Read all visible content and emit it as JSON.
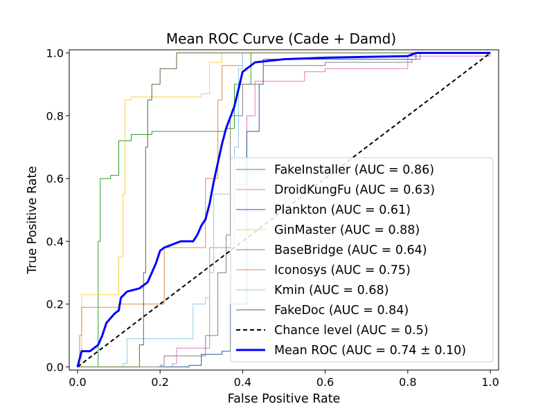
{
  "chart_data": {
    "type": "line",
    "title": "Mean ROC Curve (Cade + Damd)",
    "xlabel": "False Positive Rate",
    "ylabel": "True Positive Rate",
    "xlim": [
      -0.02,
      1.02
    ],
    "ylim": [
      -0.01,
      1.01
    ],
    "xticks": [
      "0.0",
      "0.2",
      "0.4",
      "0.6",
      "0.8",
      "1.0"
    ],
    "yticks": [
      "0.0",
      "0.2",
      "0.4",
      "0.6",
      "0.8",
      "1.0"
    ],
    "legend_position": "lower-right",
    "series": [
      {
        "name": "FakeInstaller",
        "label": "FakeInstaller (AUC = 0.86)",
        "color": "#2ca02c",
        "style": "step",
        "width": 1,
        "points": [
          [
            0,
            0
          ],
          [
            0.04,
            0
          ],
          [
            0.05,
            0.4
          ],
          [
            0.055,
            0.6
          ],
          [
            0.08,
            0.61
          ],
          [
            0.1,
            0.72
          ],
          [
            0.12,
            0.72
          ],
          [
            0.13,
            0.74
          ],
          [
            0.18,
            0.75
          ],
          [
            0.36,
            0.76
          ],
          [
            0.38,
            0.9
          ],
          [
            0.42,
            1.0
          ],
          [
            1.0,
            1.0
          ]
        ]
      },
      {
        "name": "DroidKungFu",
        "label": "DroidKungFu (AUC = 0.63)",
        "color": "#e377c2",
        "style": "step",
        "width": 1,
        "points": [
          [
            0,
            0
          ],
          [
            0.23,
            0.01
          ],
          [
            0.24,
            0.06
          ],
          [
            0.3,
            0.06
          ],
          [
            0.32,
            0.38
          ],
          [
            0.37,
            0.38
          ],
          [
            0.38,
            0.58
          ],
          [
            0.41,
            0.8
          ],
          [
            0.43,
            0.91
          ],
          [
            0.54,
            0.91
          ],
          [
            0.55,
            0.94
          ],
          [
            0.6,
            0.95
          ],
          [
            0.8,
            0.99
          ],
          [
            1.0,
            1.0
          ]
        ]
      },
      {
        "name": "Plankton",
        "label": "Plankton (AUC = 0.61)",
        "color": "#1f5a9a",
        "style": "step",
        "width": 1,
        "points": [
          [
            0,
            0
          ],
          [
            0.27,
            0.005
          ],
          [
            0.3,
            0.04
          ],
          [
            0.35,
            0.05
          ],
          [
            0.37,
            0.2
          ],
          [
            0.4,
            0.2
          ],
          [
            0.41,
            0.75
          ],
          [
            0.44,
            0.9
          ],
          [
            0.45,
            0.98
          ],
          [
            0.6,
            0.98
          ],
          [
            0.82,
            1.0
          ],
          [
            1.0,
            1.0
          ]
        ]
      },
      {
        "name": "GinMaster",
        "label": "GinMaster (AUC = 0.88)",
        "color": "#f5d335",
        "style": "step",
        "width": 1,
        "points": [
          [
            0,
            0
          ],
          [
            0.01,
            0.23
          ],
          [
            0.09,
            0.23
          ],
          [
            0.1,
            0.35
          ],
          [
            0.11,
            0.55
          ],
          [
            0.115,
            0.85
          ],
          [
            0.13,
            0.86
          ],
          [
            0.3,
            0.87
          ],
          [
            0.32,
            0.97
          ],
          [
            0.35,
            1.0
          ],
          [
            1.0,
            1.0
          ]
        ]
      },
      {
        "name": "BaseBridge",
        "label": "BaseBridge (AUC = 0.64)",
        "color": "#808080",
        "style": "step",
        "width": 1,
        "points": [
          [
            0,
            0
          ],
          [
            0.2,
            0.005
          ],
          [
            0.21,
            0.035
          ],
          [
            0.3,
            0.035
          ],
          [
            0.31,
            0.1
          ],
          [
            0.33,
            0.1
          ],
          [
            0.34,
            0.3
          ],
          [
            0.36,
            0.42
          ],
          [
            0.37,
            0.8
          ],
          [
            0.4,
            0.9
          ],
          [
            0.45,
            0.96
          ],
          [
            0.6,
            0.97
          ],
          [
            0.81,
            0.98
          ],
          [
            0.83,
            1.0
          ],
          [
            1.0,
            1.0
          ]
        ]
      },
      {
        "name": "Iconosys",
        "label": "Iconosys (AUC = 0.75)",
        "color": "#e0884c",
        "style": "step",
        "width": 1,
        "points": [
          [
            0,
            0
          ],
          [
            0.005,
            0.1
          ],
          [
            0.01,
            0.19
          ],
          [
            0.1,
            0.2
          ],
          [
            0.2,
            0.2
          ],
          [
            0.21,
            0.38
          ],
          [
            0.3,
            0.38
          ],
          [
            0.31,
            0.6
          ],
          [
            0.33,
            0.6
          ],
          [
            0.34,
            0.85
          ],
          [
            0.35,
            0.96
          ],
          [
            0.4,
            1.0
          ],
          [
            1.0,
            1.0
          ]
        ]
      },
      {
        "name": "Kmin",
        "label": "Kmin (AUC = 0.68)",
        "color": "#8ecae6",
        "style": "step",
        "width": 1,
        "points": [
          [
            0,
            0
          ],
          [
            0.11,
            0.01
          ],
          [
            0.12,
            0.09
          ],
          [
            0.27,
            0.09
          ],
          [
            0.28,
            0.2
          ],
          [
            0.31,
            0.22
          ],
          [
            0.32,
            0.3
          ],
          [
            0.33,
            0.55
          ],
          [
            0.38,
            0.7
          ],
          [
            0.39,
            0.95
          ],
          [
            0.4,
            1.0
          ],
          [
            1.0,
            1.0
          ]
        ]
      },
      {
        "name": "FakeDoc",
        "label": "FakeDoc (AUC = 0.84)",
        "color": "#556b2f",
        "style": "step",
        "width": 1,
        "points": [
          [
            0,
            0
          ],
          [
            0.15,
            0.07
          ],
          [
            0.16,
            0.3
          ],
          [
            0.165,
            0.7
          ],
          [
            0.17,
            0.85
          ],
          [
            0.18,
            0.9
          ],
          [
            0.2,
            0.95
          ],
          [
            0.24,
            1.0
          ],
          [
            1.0,
            1.0
          ]
        ]
      },
      {
        "name": "Chance level",
        "label": "Chance level (AUC = 0.5)",
        "color": "#000000",
        "style": "dashed",
        "width": 2,
        "points": [
          [
            0,
            0
          ],
          [
            1,
            1
          ]
        ]
      },
      {
        "name": "Mean ROC",
        "label": "Mean ROC (AUC = 0.74 ± 0.10)",
        "color": "#0000ff",
        "style": "line",
        "width": 3,
        "points": [
          [
            0,
            0
          ],
          [
            0.01,
            0.05
          ],
          [
            0.03,
            0.05
          ],
          [
            0.05,
            0.07
          ],
          [
            0.06,
            0.1
          ],
          [
            0.07,
            0.14
          ],
          [
            0.09,
            0.17
          ],
          [
            0.1,
            0.18
          ],
          [
            0.105,
            0.22
          ],
          [
            0.12,
            0.24
          ],
          [
            0.15,
            0.25
          ],
          [
            0.17,
            0.27
          ],
          [
            0.18,
            0.3
          ],
          [
            0.19,
            0.33
          ],
          [
            0.2,
            0.37
          ],
          [
            0.21,
            0.38
          ],
          [
            0.23,
            0.39
          ],
          [
            0.25,
            0.4
          ],
          [
            0.28,
            0.4
          ],
          [
            0.29,
            0.42
          ],
          [
            0.3,
            0.45
          ],
          [
            0.31,
            0.47
          ],
          [
            0.32,
            0.52
          ],
          [
            0.33,
            0.59
          ],
          [
            0.35,
            0.71
          ],
          [
            0.36,
            0.76
          ],
          [
            0.38,
            0.83
          ],
          [
            0.4,
            0.94
          ],
          [
            0.43,
            0.97
          ],
          [
            0.5,
            0.98
          ],
          [
            0.6,
            0.985
          ],
          [
            0.8,
            0.99
          ],
          [
            0.82,
            1.0
          ],
          [
            1.0,
            1.0
          ]
        ]
      }
    ]
  },
  "legend": {
    "mean_label_color": "#c00000"
  }
}
